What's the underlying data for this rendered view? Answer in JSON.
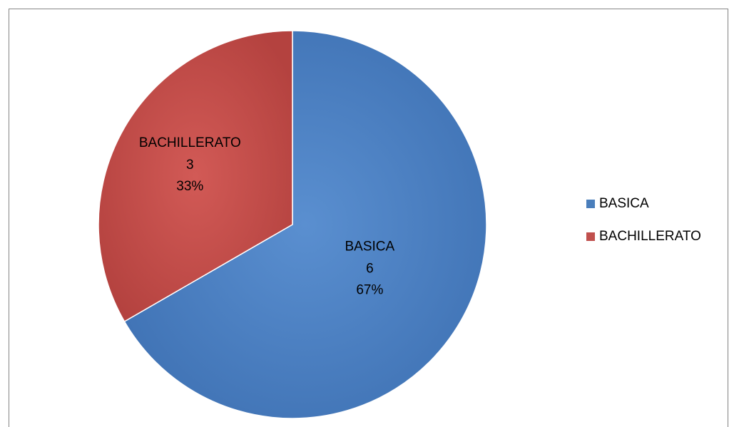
{
  "chart_data": {
    "type": "pie",
    "categories": [
      "BASICA",
      "BACHILLERATO"
    ],
    "values": [
      6,
      3
    ],
    "percent_labels": [
      "67%",
      "33%"
    ],
    "colors": [
      "#4a7ebb",
      "#c0504d"
    ],
    "legend": "right"
  }
}
